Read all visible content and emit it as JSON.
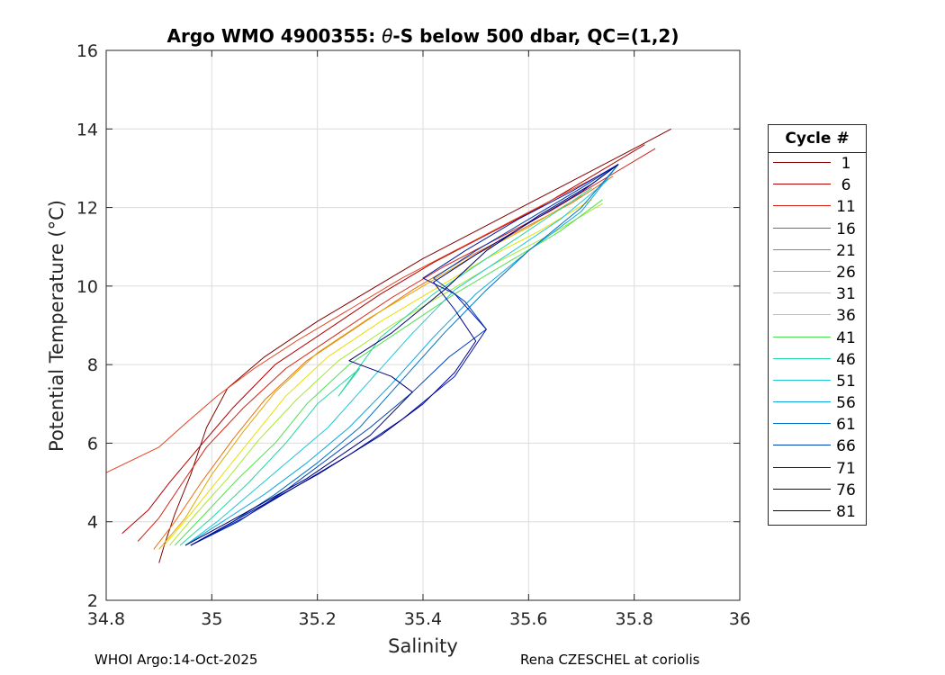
{
  "chart_data": {
    "type": "line",
    "title": "Argo WMO 4900355: θ-S below 500 dbar,  QC=(1,2)",
    "title_parts": {
      "prefix": "Argo WMO 4900355: ",
      "symbol": "θ",
      "suffix": "-S below 500 dbar,  QC=(1,2)"
    },
    "xlabel": "Salinity",
    "ylabel": "Potential Temperature (°C)",
    "xlim": [
      34.8,
      36
    ],
    "ylim": [
      2,
      16
    ],
    "x_ticks": [
      34.8,
      35,
      35.2,
      35.4,
      35.6,
      35.8,
      36
    ],
    "x_tick_labels": [
      "34.8",
      "35",
      "35.2",
      "35.4",
      "35.6",
      "35.8",
      "36"
    ],
    "y_ticks": [
      2,
      4,
      6,
      8,
      10,
      12,
      14,
      16
    ],
    "y_tick_labels": [
      "2",
      "4",
      "6",
      "8",
      "10",
      "12",
      "14",
      "16"
    ],
    "grid": true,
    "legend_position": "right",
    "legend": {
      "title": "Cycle #",
      "entries": [
        {
          "label": "1",
          "color": "#800000"
        },
        {
          "label": "6",
          "color": "#b30000"
        },
        {
          "label": "11",
          "color": "#d42010"
        },
        {
          "label": "16",
          "color": "#e84020"
        },
        {
          "label": "21",
          "color": "#e87010"
        },
        {
          "label": "26",
          "color": "#e0a800"
        },
        {
          "label": "31",
          "color": "#e8e000"
        },
        {
          "label": "36",
          "color": "#a8e830"
        },
        {
          "label": "41",
          "color": "#50e050"
        },
        {
          "label": "46",
          "color": "#20d8a0"
        },
        {
          "label": "51",
          "color": "#20c8d8"
        },
        {
          "label": "56",
          "color": "#10a8e0"
        },
        {
          "label": "61",
          "color": "#0070c8"
        },
        {
          "label": "66",
          "color": "#0040b8"
        },
        {
          "label": "71",
          "color": "#0018a8"
        },
        {
          "label": "76",
          "color": "#000090"
        },
        {
          "label": "81",
          "color": "#000070"
        }
      ]
    },
    "series_paths": [
      {
        "name": "1",
        "color": "#800000",
        "s": [
          34.9,
          34.91,
          34.93,
          34.96,
          34.99,
          35.03,
          35.1,
          35.2,
          35.3,
          35.4,
          35.5,
          35.6,
          35.7,
          35.8,
          35.87
        ],
        "t": [
          2.95,
          3.4,
          4.2,
          5.2,
          6.4,
          7.4,
          8.2,
          9.1,
          9.9,
          10.7,
          11.4,
          12.1,
          12.8,
          13.5,
          14.0
        ]
      },
      {
        "name": "6",
        "color": "#b30000",
        "s": [
          34.83,
          34.88,
          34.92,
          34.97,
          35.04,
          35.12,
          35.22,
          35.32,
          35.42,
          35.52,
          35.62,
          35.72,
          35.82
        ],
        "t": [
          3.7,
          4.3,
          5.0,
          5.8,
          6.9,
          8.0,
          8.9,
          9.8,
          10.6,
          11.3,
          12.0,
          12.8,
          13.6
        ]
      },
      {
        "name": "11",
        "color": "#d42010",
        "s": [
          34.86,
          34.9,
          34.94,
          34.99,
          35.06,
          35.14,
          35.24,
          35.34,
          35.44,
          35.54,
          35.64,
          35.74,
          35.84
        ],
        "t": [
          3.5,
          4.1,
          4.9,
          5.9,
          6.9,
          7.9,
          8.8,
          9.7,
          10.5,
          11.2,
          11.9,
          12.7,
          13.5
        ]
      },
      {
        "name": "16",
        "color": "#e84020",
        "s": [
          34.8,
          34.9,
          34.95,
          35.01,
          35.08,
          35.16,
          35.26,
          35.36,
          35.46,
          35.56,
          35.66,
          35.76
        ],
        "t": [
          5.25,
          5.9,
          6.5,
          7.2,
          7.9,
          8.6,
          9.4,
          10.2,
          10.9,
          11.6,
          12.3,
          13.0
        ]
      },
      {
        "name": "21",
        "color": "#e87010",
        "s": [
          34.89,
          34.93,
          34.98,
          35.04,
          35.1,
          35.18,
          35.28,
          35.38,
          35.48,
          35.58,
          35.68,
          35.76
        ],
        "t": [
          3.3,
          4.0,
          5.0,
          6.1,
          7.1,
          8.1,
          9.0,
          9.9,
          10.7,
          11.4,
          12.1,
          12.8
        ]
      },
      {
        "name": "26",
        "color": "#e0a800",
        "s": [
          34.9,
          34.95,
          35.0,
          35.06,
          35.12,
          35.2,
          35.3,
          35.4,
          35.5,
          35.6,
          35.7
        ],
        "t": [
          3.3,
          4.1,
          5.2,
          6.3,
          7.3,
          8.3,
          9.2,
          10.0,
          10.8,
          11.5,
          12.3
        ]
      },
      {
        "name": "31",
        "color": "#e8e000",
        "s": [
          34.91,
          34.96,
          35.02,
          35.08,
          35.14,
          35.22,
          35.32,
          35.42,
          35.52,
          35.62,
          35.72
        ],
        "t": [
          3.4,
          4.2,
          5.2,
          6.2,
          7.2,
          8.2,
          9.1,
          9.9,
          10.7,
          11.4,
          12.2
        ]
      },
      {
        "name": "36",
        "color": "#a8e830",
        "s": [
          34.92,
          34.97,
          35.03,
          35.09,
          35.16,
          35.24,
          35.34,
          35.44,
          35.54,
          35.64,
          35.74
        ],
        "t": [
          3.4,
          4.2,
          5.1,
          6.1,
          7.1,
          8.1,
          9.0,
          9.8,
          10.6,
          11.3,
          12.1
        ]
      },
      {
        "name": "41",
        "color": "#50e050",
        "s": [
          34.93,
          34.98,
          35.05,
          35.12,
          35.18,
          35.26,
          35.36,
          35.46,
          35.56,
          35.66,
          35.74
        ],
        "t": [
          3.4,
          4.1,
          5.1,
          6.0,
          7.0,
          8.0,
          8.9,
          9.8,
          10.6,
          11.4,
          12.2
        ]
      },
      {
        "name": "46",
        "color": "#20d8a0",
        "s": [
          34.94,
          35.0,
          35.07,
          35.14,
          35.2,
          35.28,
          35.24,
          35.32,
          35.42,
          35.52,
          35.62,
          35.72
        ],
        "t": [
          3.4,
          4.1,
          5.0,
          6.0,
          7.0,
          7.9,
          7.2,
          8.7,
          9.8,
          10.7,
          11.6,
          12.5
        ]
      },
      {
        "name": "51",
        "color": "#20c8d8",
        "s": [
          34.95,
          35.01,
          35.08,
          35.15,
          35.22,
          35.3,
          35.38,
          35.46,
          35.56,
          35.66,
          35.75
        ],
        "t": [
          3.4,
          4.0,
          4.8,
          5.6,
          6.4,
          7.6,
          8.8,
          9.9,
          10.8,
          11.7,
          12.7
        ]
      },
      {
        "name": "56",
        "color": "#10a8e0",
        "s": [
          34.95,
          35.02,
          35.1,
          35.18,
          35.26,
          35.34,
          35.42,
          35.5,
          35.6,
          35.7,
          35.77
        ],
        "t": [
          3.4,
          4.0,
          4.7,
          5.5,
          6.4,
          7.5,
          8.7,
          9.8,
          10.9,
          11.9,
          13.1
        ]
      },
      {
        "name": "61",
        "color": "#0070c8",
        "s": [
          34.96,
          35.04,
          35.12,
          35.2,
          35.28,
          35.36,
          35.44,
          35.52,
          35.6,
          35.7,
          35.77
        ],
        "t": [
          3.4,
          4.0,
          4.7,
          5.5,
          6.4,
          7.6,
          8.8,
          9.9,
          10.9,
          12.0,
          13.1
        ]
      },
      {
        "name": "66",
        "color": "#0040b8",
        "s": [
          34.96,
          35.05,
          35.14,
          35.22,
          35.3,
          35.38,
          35.45,
          35.52,
          35.48,
          35.42,
          35.5,
          35.6,
          35.7,
          35.77
        ],
        "t": [
          3.4,
          4.0,
          4.8,
          5.6,
          6.4,
          7.3,
          8.2,
          8.9,
          9.6,
          10.2,
          10.9,
          11.7,
          12.5,
          13.1
        ]
      },
      {
        "name": "71",
        "color": "#0018a8",
        "s": [
          34.96,
          35.06,
          35.16,
          35.26,
          35.36,
          35.46,
          35.52,
          35.46,
          35.4,
          35.48,
          35.58,
          35.68,
          35.77
        ],
        "t": [
          3.4,
          4.1,
          4.9,
          5.7,
          6.6,
          7.7,
          8.9,
          9.8,
          10.2,
          10.9,
          11.7,
          12.4,
          13.1
        ]
      },
      {
        "name": "76",
        "color": "#000090",
        "s": [
          34.96,
          35.08,
          35.2,
          35.32,
          35.4,
          35.46,
          35.5,
          35.46,
          35.42,
          35.5,
          35.6,
          35.7,
          35.77
        ],
        "t": [
          3.4,
          4.3,
          5.2,
          6.2,
          7.0,
          7.8,
          8.6,
          9.4,
          10.1,
          10.8,
          11.6,
          12.4,
          13.1
        ]
      },
      {
        "name": "81",
        "color": "#000070",
        "s": [
          34.95,
          35.06,
          35.18,
          35.3,
          35.38,
          35.34,
          35.26,
          35.34,
          35.44,
          35.52,
          35.62,
          35.72,
          35.77
        ],
        "t": [
          3.4,
          4.2,
          5.1,
          6.2,
          7.3,
          7.7,
          8.1,
          8.8,
          9.9,
          10.9,
          11.8,
          12.6,
          13.1
        ]
      }
    ]
  },
  "footer": {
    "left": "WHOI Argo:14-Oct-2025",
    "right": "Rena CZESCHEL at coriolis"
  }
}
